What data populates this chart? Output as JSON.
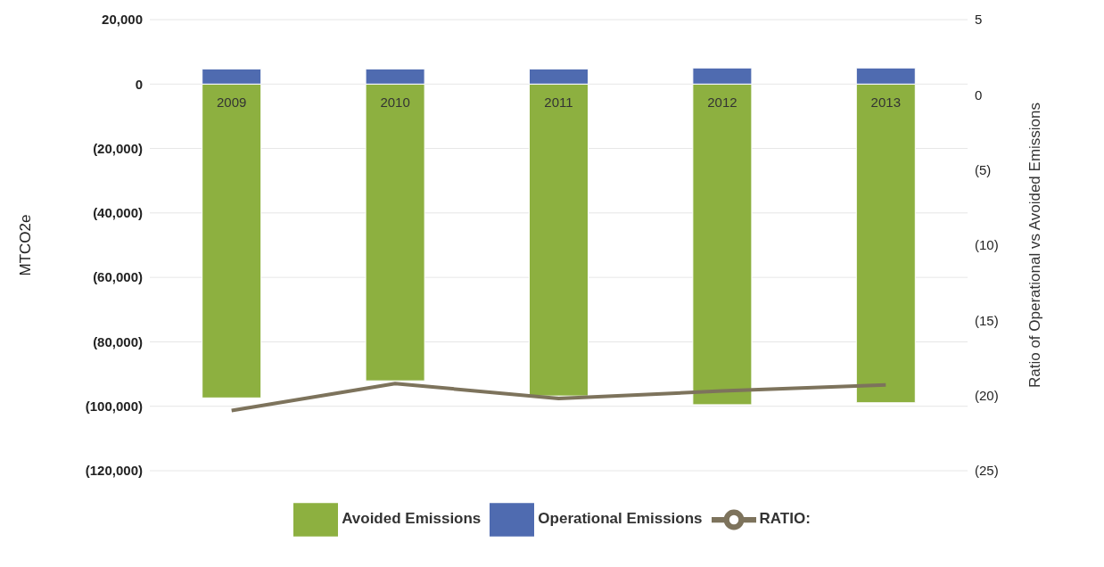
{
  "chart_data": {
    "type": "bar",
    "stacked": true,
    "categories": [
      "2009",
      "2010",
      "2011",
      "2012",
      "2013"
    ],
    "ylabel": "MTCO2e",
    "y2label": "Ratio of Operational vs Avoided Emissions",
    "series": [
      {
        "name": "Avoided Emissions",
        "color": "#8db040",
        "values": [
          -97400,
          -92100,
          -96800,
          -99500,
          -98900
        ]
      },
      {
        "name": "Operational Emissions",
        "color": "#4f6bb0",
        "values": [
          4700,
          4700,
          4700,
          5000,
          5000
        ]
      },
      {
        "name": "RATIO:",
        "type": "line",
        "axis": "y2",
        "color": "#7d735c",
        "values": [
          -21.0,
          -19.2,
          -20.2,
          -19.7,
          -19.3
        ]
      }
    ],
    "ylim": [
      -120000,
      20000
    ],
    "yticks": [
      {
        "value": 20000,
        "label": "20,000"
      },
      0,
      {
        "value": -20000,
        "label": "(20,000)"
      },
      {
        "value": -40000,
        "label": "(40,000)"
      },
      {
        "value": -60000,
        "label": "(60,000)"
      },
      {
        "value": -80000,
        "label": "(80,000)"
      },
      {
        "value": -100000,
        "label": "(100,000)"
      },
      {
        "value": -120000,
        "label": "(120,000)"
      }
    ],
    "y2lim": [
      -25,
      5
    ],
    "y2ticks": [
      5,
      0,
      {
        "value": -5,
        "label": "(5)"
      },
      {
        "value": -10,
        "label": "(10)"
      },
      {
        "value": -15,
        "label": "(15)"
      },
      {
        "value": -20,
        "label": "(20)"
      },
      {
        "value": -25,
        "label": "(25)"
      }
    ],
    "grid": "y",
    "legend": "bottom",
    "marker": "none"
  }
}
